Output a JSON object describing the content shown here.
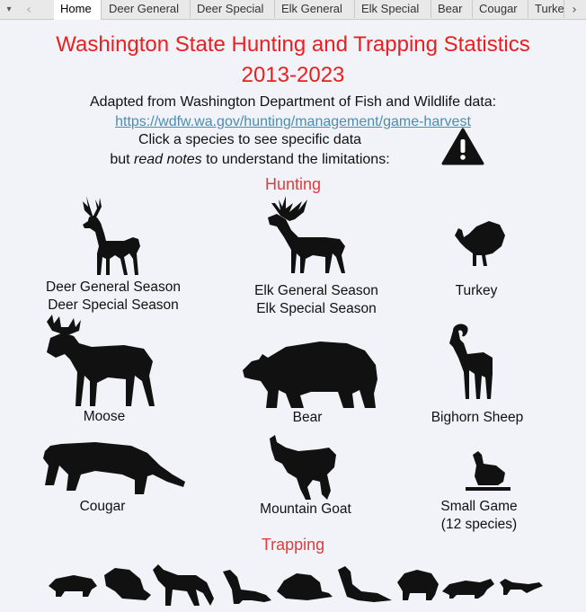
{
  "tabs": [
    {
      "label": "Home",
      "active": true
    },
    {
      "label": "Deer General"
    },
    {
      "label": "Deer Special"
    },
    {
      "label": "Elk General"
    },
    {
      "label": "Elk Special"
    },
    {
      "label": "Bear"
    },
    {
      "label": "Cougar"
    },
    {
      "label": "Turke"
    }
  ],
  "nav": {
    "menu_glyph": "▾",
    "prev_glyph": "‹",
    "next_glyph": "›"
  },
  "title_line1": "Washington State Hunting and Trapping Statistics",
  "title_line2": "2013-2023",
  "source_text": "Adapted from Washington Department of Fish and Wildlife data:",
  "source_link": "https://wdfw.wa.gov/hunting/management/game-harvest",
  "instruction_line1": "Click a species to see specific data",
  "instruction_line2_prefix": "but ",
  "instruction_line2_em": "read notes",
  "instruction_line2_suffix": " to understand the limitations:",
  "warning_icon": "warning-triangle-icon",
  "hunting_heading": "Hunting",
  "trapping_heading": "Trapping",
  "animals": {
    "deer_line1": "Deer General Season",
    "deer_line2": "Deer Special Season",
    "elk_line1": "Elk General Season",
    "elk_line2": "Elk Special Season",
    "turkey": "Turkey",
    "moose": "Moose",
    "bear": "Bear",
    "bighorn": "Bighorn Sheep",
    "cougar": "Cougar",
    "goat": "Mountain Goat",
    "small_line1": "Small Game",
    "small_line2": "(12 species)"
  },
  "colors": {
    "title": "#ea1f1f",
    "heading": "#e23b3b",
    "link": "#4a8db3",
    "silhouette": "#111111",
    "background": "#f1f3f8"
  }
}
